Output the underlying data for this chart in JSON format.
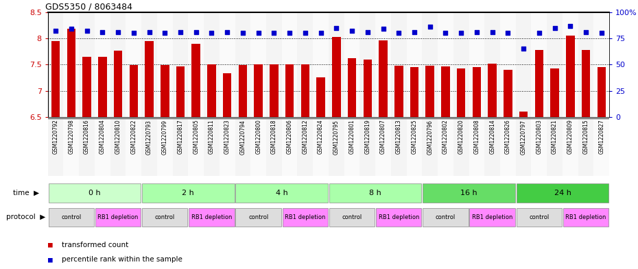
{
  "title": "GDS5350 / 8063484",
  "samples": [
    "GSM1220792",
    "GSM1220798",
    "GSM1220816",
    "GSM1220804",
    "GSM1220810",
    "GSM1220822",
    "GSM1220793",
    "GSM1220799",
    "GSM1220817",
    "GSM1220805",
    "GSM1220811",
    "GSM1220823",
    "GSM1220794",
    "GSM1220800",
    "GSM1220818",
    "GSM1220806",
    "GSM1220812",
    "GSM1220824",
    "GSM1220795",
    "GSM1220801",
    "GSM1220819",
    "GSM1220807",
    "GSM1220813",
    "GSM1220825",
    "GSM1220796",
    "GSM1220802",
    "GSM1220820",
    "GSM1220808",
    "GSM1220814",
    "GSM1220826",
    "GSM1220797",
    "GSM1220803",
    "GSM1220821",
    "GSM1220809",
    "GSM1220815",
    "GSM1220827"
  ],
  "transformed_count": [
    7.95,
    8.18,
    7.65,
    7.65,
    7.76,
    7.49,
    7.95,
    7.49,
    7.46,
    7.9,
    7.5,
    7.34,
    7.49,
    7.5,
    7.5,
    7.5,
    7.5,
    7.26,
    8.02,
    7.62,
    7.6,
    7.96,
    7.48,
    7.45,
    7.48,
    7.47,
    7.42,
    7.45,
    7.52,
    7.4,
    6.6,
    7.78,
    7.42,
    8.05,
    7.78,
    7.45
  ],
  "percentile_rank": [
    82,
    84,
    82,
    81,
    81,
    80,
    81,
    80,
    81,
    81,
    80,
    81,
    80,
    80,
    80,
    80,
    80,
    80,
    85,
    82,
    81,
    84,
    80,
    81,
    86,
    80,
    80,
    81,
    81,
    80,
    65,
    80,
    85,
    87,
    81,
    80
  ],
  "bar_color": "#cc0000",
  "dot_color": "#0000cc",
  "ylim_left": [
    6.5,
    8.5
  ],
  "ylim_right": [
    0,
    100
  ],
  "yticks_left": [
    6.5,
    7.0,
    7.5,
    8.0,
    8.5
  ],
  "ytick_labels_left": [
    "6.5",
    "7",
    "7.5",
    "8",
    "8.5"
  ],
  "yticks_right": [
    0,
    25,
    50,
    75,
    100
  ],
  "ytick_labels_right": [
    "0",
    "25",
    "50",
    "75",
    "100%"
  ],
  "grid_values": [
    7.0,
    7.5,
    8.0
  ],
  "time_groups": [
    {
      "label": "0 h",
      "start": 0,
      "end": 6,
      "color": "#ccffcc"
    },
    {
      "label": "2 h",
      "start": 6,
      "end": 12,
      "color": "#aaffaa"
    },
    {
      "label": "4 h",
      "start": 12,
      "end": 18,
      "color": "#aaffaa"
    },
    {
      "label": "8 h",
      "start": 18,
      "end": 24,
      "color": "#aaffaa"
    },
    {
      "label": "16 h",
      "start": 24,
      "end": 30,
      "color": "#66dd66"
    },
    {
      "label": "24 h",
      "start": 30,
      "end": 36,
      "color": "#44cc44"
    }
  ],
  "protocol_groups": [
    {
      "label": "control",
      "start": 0,
      "end": 3,
      "color": "#dddddd"
    },
    {
      "label": "RB1 depletion",
      "start": 3,
      "end": 6,
      "color": "#ff88ff"
    },
    {
      "label": "control",
      "start": 6,
      "end": 9,
      "color": "#dddddd"
    },
    {
      "label": "RB1 depletion",
      "start": 9,
      "end": 12,
      "color": "#ff88ff"
    },
    {
      "label": "control",
      "start": 12,
      "end": 15,
      "color": "#dddddd"
    },
    {
      "label": "RB1 depletion",
      "start": 15,
      "end": 18,
      "color": "#ff88ff"
    },
    {
      "label": "control",
      "start": 18,
      "end": 21,
      "color": "#dddddd"
    },
    {
      "label": "RB1 depletion",
      "start": 21,
      "end": 24,
      "color": "#ff88ff"
    },
    {
      "label": "control",
      "start": 24,
      "end": 27,
      "color": "#dddddd"
    },
    {
      "label": "RB1 depletion",
      "start": 27,
      "end": 30,
      "color": "#ff88ff"
    },
    {
      "label": "control",
      "start": 30,
      "end": 33,
      "color": "#dddddd"
    },
    {
      "label": "RB1 depletion",
      "start": 33,
      "end": 36,
      "color": "#ff88ff"
    }
  ],
  "legend_items": [
    {
      "label": "transformed count",
      "color": "#cc0000"
    },
    {
      "label": "percentile rank within the sample",
      "color": "#0000cc"
    }
  ],
  "bar_width": 0.55,
  "bg_color": "#ffffff",
  "left_tick_color": "#cc0000",
  "right_tick_color": "#0000cc",
  "col_bg_even": "#e8e8e8",
  "col_bg_odd": "#f4f4f4"
}
